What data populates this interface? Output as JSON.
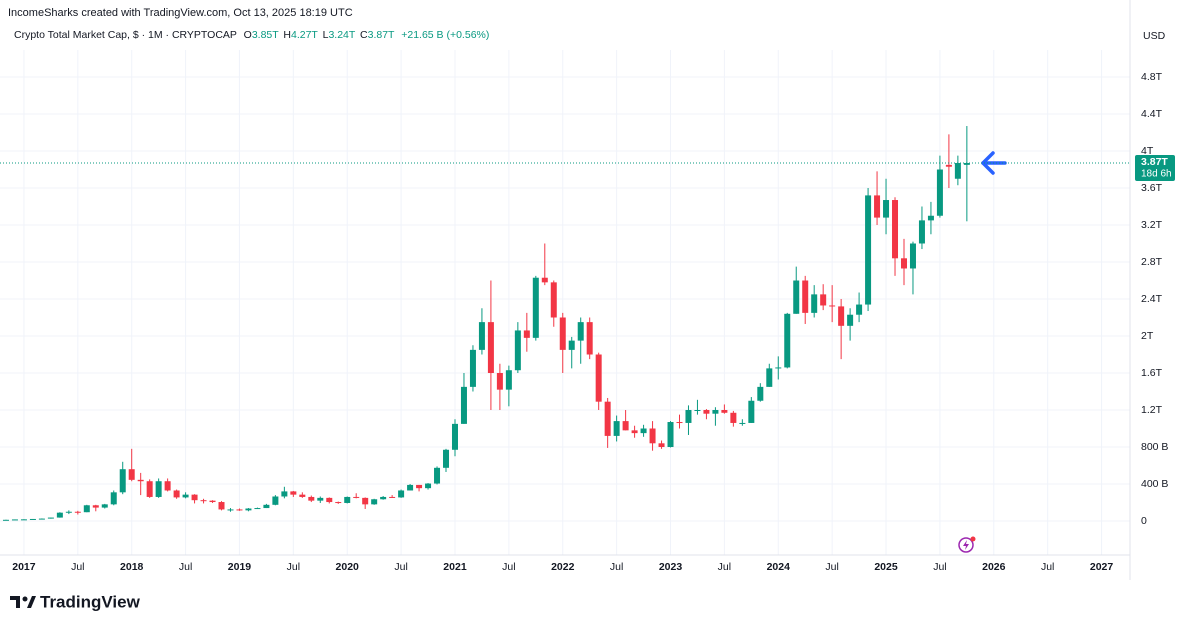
{
  "header": {
    "attribution": "IncomeSharks created with TradingView.com, Oct 13, 2025 18:19 UTC",
    "brand": "TradingView"
  },
  "chart_data": {
    "type": "candlestick",
    "title": "Crypto Total Market Cap, $ · 1M · CRYPTOCAP",
    "legend": [
      {
        "key": "O",
        "value": "3.85T"
      },
      {
        "key": "H",
        "value": "4.27T"
      },
      {
        "key": "L",
        "value": "3.24T"
      },
      {
        "key": "C",
        "value": "3.87T"
      }
    ],
    "change": "+21.65 B (+0.56%)",
    "currency": "USD",
    "up_color": "#089981",
    "down_color": "#f23645",
    "last_price": {
      "value": 3870,
      "label": "3.87T"
    },
    "countdown": "18d 6h",
    "x": [
      "2016-11",
      "2016-12",
      "2017-01",
      "2017-02",
      "2017-03",
      "2017-04",
      "2017-05",
      "2017-06",
      "2017-07",
      "2017-08",
      "2017-09",
      "2017-10",
      "2017-11",
      "2017-12",
      "2018-01",
      "2018-02",
      "2018-03",
      "2018-04",
      "2018-05",
      "2018-06",
      "2018-07",
      "2018-08",
      "2018-09",
      "2018-10",
      "2018-11",
      "2018-12",
      "2019-01",
      "2019-02",
      "2019-03",
      "2019-04",
      "2019-05",
      "2019-06",
      "2019-07",
      "2019-08",
      "2019-09",
      "2019-10",
      "2019-11",
      "2019-12",
      "2020-01",
      "2020-02",
      "2020-03",
      "2020-04",
      "2020-05",
      "2020-06",
      "2020-07",
      "2020-08",
      "2020-09",
      "2020-10",
      "2020-11",
      "2020-12",
      "2021-01",
      "2021-02",
      "2021-03",
      "2021-04",
      "2021-05",
      "2021-06",
      "2021-07",
      "2021-08",
      "2021-09",
      "2021-10",
      "2021-11",
      "2021-12",
      "2022-01",
      "2022-02",
      "2022-03",
      "2022-04",
      "2022-05",
      "2022-06",
      "2022-07",
      "2022-08",
      "2022-09",
      "2022-10",
      "2022-11",
      "2022-12",
      "2023-01",
      "2023-02",
      "2023-03",
      "2023-04",
      "2023-05",
      "2023-06",
      "2023-07",
      "2023-08",
      "2023-09",
      "2023-10",
      "2023-11",
      "2023-12",
      "2024-01",
      "2024-02",
      "2024-03",
      "2024-04",
      "2024-05",
      "2024-06",
      "2024-07",
      "2024-08",
      "2024-09",
      "2024-10",
      "2024-11",
      "2024-12",
      "2025-01",
      "2025-02",
      "2025-03",
      "2025-04",
      "2025-05",
      "2025-06",
      "2025-07",
      "2025-08",
      "2025-09",
      "2025-10"
    ],
    "ohlc": [
      [
        12,
        14,
        11,
        13
      ],
      [
        13,
        17,
        13,
        17
      ],
      [
        17,
        19,
        15,
        18
      ],
      [
        18,
        22,
        17,
        22
      ],
      [
        22,
        28,
        20,
        26
      ],
      [
        26,
        37,
        25,
        37
      ],
      [
        37,
        95,
        36,
        90
      ],
      [
        90,
        115,
        75,
        100
      ],
      [
        100,
        110,
        70,
        95
      ],
      [
        95,
        175,
        95,
        170
      ],
      [
        170,
        175,
        105,
        145
      ],
      [
        145,
        185,
        135,
        180
      ],
      [
        180,
        330,
        170,
        310
      ],
      [
        310,
        640,
        290,
        560
      ],
      [
        560,
        780,
        430,
        445
      ],
      [
        445,
        520,
        280,
        430
      ],
      [
        430,
        450,
        250,
        260
      ],
      [
        260,
        460,
        250,
        430
      ],
      [
        430,
        460,
        320,
        330
      ],
      [
        330,
        340,
        240,
        255
      ],
      [
        255,
        310,
        245,
        285
      ],
      [
        285,
        290,
        190,
        225
      ],
      [
        225,
        240,
        190,
        220
      ],
      [
        220,
        225,
        195,
        205
      ],
      [
        205,
        215,
        115,
        125
      ],
      [
        125,
        140,
        100,
        125
      ],
      [
        125,
        135,
        110,
        115
      ],
      [
        115,
        140,
        105,
        135
      ],
      [
        135,
        145,
        130,
        140
      ],
      [
        140,
        185,
        140,
        175
      ],
      [
        175,
        280,
        170,
        265
      ],
      [
        265,
        370,
        245,
        320
      ],
      [
        320,
        325,
        260,
        285
      ],
      [
        285,
        310,
        250,
        260
      ],
      [
        260,
        275,
        205,
        220
      ],
      [
        220,
        265,
        195,
        250
      ],
      [
        250,
        255,
        190,
        205
      ],
      [
        205,
        210,
        185,
        195
      ],
      [
        195,
        265,
        190,
        260
      ],
      [
        260,
        300,
        245,
        250
      ],
      [
        250,
        255,
        130,
        180
      ],
      [
        180,
        240,
        175,
        235
      ],
      [
        235,
        270,
        230,
        260
      ],
      [
        260,
        280,
        250,
        255
      ],
      [
        255,
        340,
        250,
        330
      ],
      [
        330,
        400,
        330,
        390
      ],
      [
        390,
        390,
        320,
        355
      ],
      [
        355,
        410,
        340,
        405
      ],
      [
        405,
        590,
        395,
        575
      ],
      [
        575,
        780,
        530,
        770
      ],
      [
        770,
        1100,
        700,
        1050
      ],
      [
        1050,
        1600,
        1050,
        1450
      ],
      [
        1450,
        1900,
        1400,
        1850
      ],
      [
        1850,
        2300,
        1800,
        2150
      ],
      [
        2150,
        2600,
        1200,
        1600
      ],
      [
        1600,
        1700,
        1200,
        1420
      ],
      [
        1420,
        1680,
        1240,
        1630
      ],
      [
        1630,
        2150,
        1600,
        2060
      ],
      [
        2060,
        2250,
        1830,
        1980
      ],
      [
        1980,
        2650,
        1950,
        2630
      ],
      [
        2630,
        3000,
        2550,
        2580
      ],
      [
        2580,
        2600,
        2100,
        2200
      ],
      [
        2200,
        2250,
        1600,
        1850
      ],
      [
        1850,
        1990,
        1650,
        1950
      ],
      [
        1950,
        2200,
        1700,
        2150
      ],
      [
        2150,
        2200,
        1750,
        1800
      ],
      [
        1800,
        1820,
        1200,
        1290
      ],
      [
        1290,
        1330,
        790,
        920
      ],
      [
        920,
        1140,
        860,
        1080
      ],
      [
        1080,
        1200,
        980,
        980
      ],
      [
        980,
        1030,
        900,
        950
      ],
      [
        950,
        1040,
        910,
        1000
      ],
      [
        1000,
        1080,
        760,
        840
      ],
      [
        840,
        870,
        780,
        800
      ],
      [
        800,
        1080,
        795,
        1070
      ],
      [
        1070,
        1150,
        1000,
        1060
      ],
      [
        1060,
        1250,
        930,
        1200
      ],
      [
        1200,
        1310,
        1150,
        1200
      ],
      [
        1200,
        1210,
        1100,
        1160
      ],
      [
        1160,
        1230,
        1030,
        1200
      ],
      [
        1200,
        1260,
        1160,
        1170
      ],
      [
        1170,
        1190,
        1020,
        1060
      ],
      [
        1060,
        1100,
        1030,
        1060
      ],
      [
        1060,
        1340,
        1060,
        1300
      ],
      [
        1300,
        1490,
        1290,
        1450
      ],
      [
        1450,
        1700,
        1450,
        1650
      ],
      [
        1650,
        1780,
        1530,
        1660
      ],
      [
        1660,
        2250,
        1650,
        2240
      ],
      [
        2240,
        2750,
        2240,
        2600
      ],
      [
        2600,
        2650,
        2130,
        2250
      ],
      [
        2250,
        2550,
        2200,
        2450
      ],
      [
        2450,
        2560,
        2280,
        2330
      ],
      [
        2330,
        2550,
        2150,
        2320
      ],
      [
        2320,
        2400,
        1750,
        2110
      ],
      [
        2110,
        2300,
        1950,
        2230
      ],
      [
        2230,
        2470,
        2150,
        2340
      ],
      [
        2340,
        3600,
        2270,
        3520
      ],
      [
        3520,
        3780,
        3200,
        3280
      ],
      [
        3280,
        3700,
        3100,
        3470
      ],
      [
        3470,
        3500,
        2650,
        2840
      ],
      [
        2840,
        3050,
        2550,
        2730
      ],
      [
        2730,
        3020,
        2450,
        3000
      ],
      [
        3000,
        3400,
        2940,
        3250
      ],
      [
        3250,
        3450,
        3100,
        3300
      ],
      [
        3300,
        3950,
        3280,
        3800
      ],
      [
        3850,
        4180,
        3600,
        3830
      ],
      [
        3700,
        3950,
        3630,
        3870
      ],
      [
        3850,
        4270,
        3240,
        3870
      ]
    ],
    "xlim": [
      "2016-10",
      "2027-04"
    ],
    "xticks": [
      {
        "value": "2017-01",
        "label": "2017"
      },
      {
        "value": "2017-07",
        "label": "Jul"
      },
      {
        "value": "2018-01",
        "label": "2018"
      },
      {
        "value": "2018-07",
        "label": "Jul"
      },
      {
        "value": "2019-01",
        "label": "2019"
      },
      {
        "value": "2019-07",
        "label": "Jul"
      },
      {
        "value": "2020-01",
        "label": "2020"
      },
      {
        "value": "2020-07",
        "label": "Jul"
      },
      {
        "value": "2021-01",
        "label": "2021"
      },
      {
        "value": "2021-07",
        "label": "Jul"
      },
      {
        "value": "2022-01",
        "label": "2022"
      },
      {
        "value": "2022-07",
        "label": "Jul"
      },
      {
        "value": "2023-01",
        "label": "2023"
      },
      {
        "value": "2023-07",
        "label": "Jul"
      },
      {
        "value": "2024-01",
        "label": "2024"
      },
      {
        "value": "2024-07",
        "label": "Jul"
      },
      {
        "value": "2025-01",
        "label": "2025"
      },
      {
        "value": "2025-07",
        "label": "Jul"
      },
      {
        "value": "2026-01",
        "label": "2026"
      },
      {
        "value": "2026-07",
        "label": "Jul"
      },
      {
        "value": "2027-01",
        "label": "2027"
      }
    ],
    "ylim": [
      -300,
      5100
    ],
    "yticks": [
      0,
      {
        "value": 400,
        "label": "400 B"
      },
      {
        "value": 800,
        "label": "800 B"
      },
      {
        "value": 1200,
        "label": "1.2T"
      },
      {
        "value": 1600,
        "label": "1.6T"
      },
      {
        "value": 2000,
        "label": "2T"
      },
      {
        "value": 2400,
        "label": "2.4T"
      },
      {
        "value": 2800,
        "label": "2.8T"
      },
      {
        "value": 3200,
        "label": "3.2T"
      },
      {
        "value": 3600,
        "label": "3.6T"
      },
      {
        "value": 4000,
        "label": "4T"
      },
      {
        "value": 4400,
        "label": "4.4T"
      },
      {
        "value": 4800,
        "label": "4.8T"
      }
    ],
    "grid": true
  }
}
